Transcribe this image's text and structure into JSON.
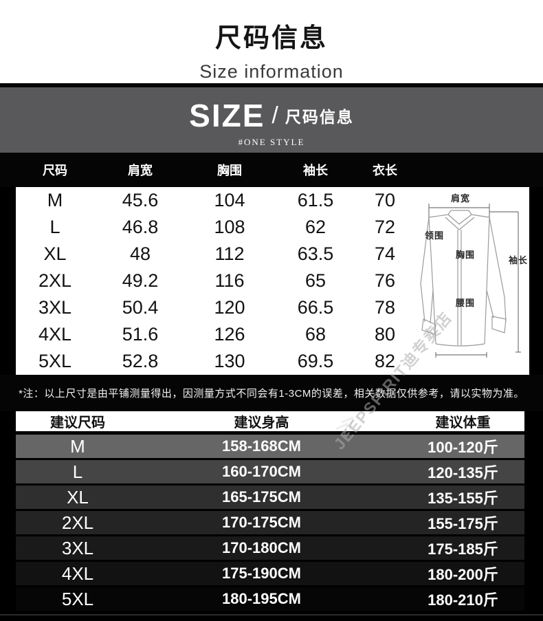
{
  "header": {
    "title_cn": "尺码信息",
    "title_en": "Size information"
  },
  "banner": {
    "size_word": "SIZE",
    "slash": "/",
    "label_cn": "尺码信息",
    "tagline": "#ONE STYLE",
    "bg_color": "#59595b"
  },
  "size_table": {
    "columns": [
      "尺码",
      "肩宽",
      "胸围",
      "袖长",
      "衣长"
    ],
    "rows": [
      {
        "size": "M",
        "shoulder": "45.6",
        "chest": "104",
        "sleeve": "61.5",
        "length": "70"
      },
      {
        "size": "L",
        "shoulder": "46.8",
        "chest": "108",
        "sleeve": "62",
        "length": "72"
      },
      {
        "size": "XL",
        "shoulder": "48",
        "chest": "112",
        "sleeve": "63.5",
        "length": "74"
      },
      {
        "size": "2XL",
        "shoulder": "49.2",
        "chest": "116",
        "sleeve": "65",
        "length": "76"
      },
      {
        "size": "3XL",
        "shoulder": "50.4",
        "chest": "120",
        "sleeve": "66.5",
        "length": "78"
      },
      {
        "size": "4XL",
        "shoulder": "51.6",
        "chest": "126",
        "sleeve": "68",
        "length": "80"
      },
      {
        "size": "5XL",
        "shoulder": "52.8",
        "chest": "130",
        "sleeve": "69.5",
        "length": "82"
      }
    ]
  },
  "diagram": {
    "labels": {
      "shoulder": "肩宽",
      "collar": "领围",
      "chest": "胸围",
      "waist": "腰围",
      "sleeve": "袖长"
    }
  },
  "note": "*注：以上尺寸是由平铺测量得出，因测量方式不同会有1-3CM的误差，相关数据仅供参考，请以实物为准。",
  "suggestion_table": {
    "columns": [
      "建议尺码",
      "建议身高",
      "建议体重"
    ],
    "rows": [
      {
        "size": "M",
        "height": "158-168CM",
        "weight": "100-120斤",
        "bg": "#666666"
      },
      {
        "size": "L",
        "height": "160-170CM",
        "weight": "120-135斤",
        "bg": "#454545"
      },
      {
        "size": "XL",
        "height": "165-175CM",
        "weight": "135-155斤",
        "bg": "#2f2f2f"
      },
      {
        "size": "2XL",
        "height": "170-175CM",
        "weight": "155-175斤",
        "bg": "#242424"
      },
      {
        "size": "3XL",
        "height": "170-180CM",
        "weight": "175-185斤",
        "bg": "#1a1a1a"
      },
      {
        "size": "4XL",
        "height": "175-190CM",
        "weight": "180-200斤",
        "bg": "#121212"
      },
      {
        "size": "5XL",
        "height": "180-195CM",
        "weight": "180-210斤",
        "bg": "#060606"
      }
    ]
  },
  "watermark": {
    "text": "JEEPSPIRIT迪专卖店",
    "chevron": "≫"
  }
}
